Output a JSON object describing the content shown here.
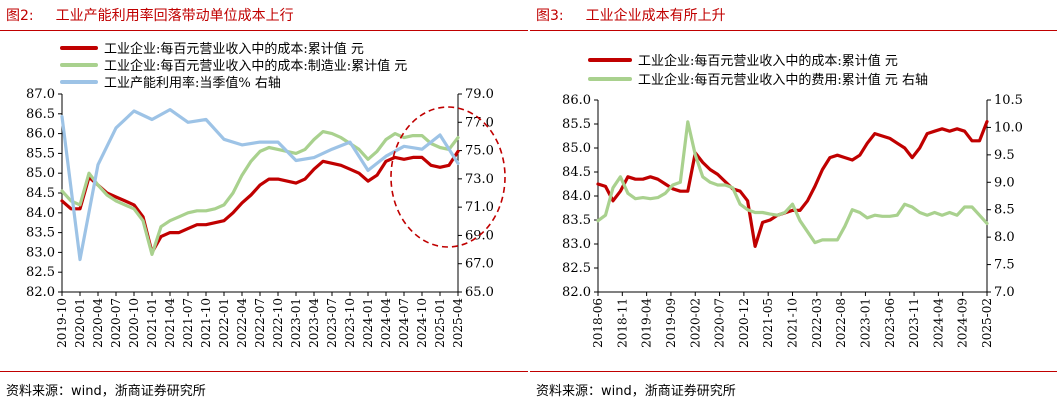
{
  "figures": [
    {
      "number": "图2:",
      "title": "工业产能利用率回落带动单位成本上行",
      "source": "资料来源：wind，浙商证券研究所"
    },
    {
      "number": "图3:",
      "title": "工业企业成本有所上升",
      "source": "资料来源：wind，浙商证券研究所"
    }
  ],
  "chart_data": [
    {
      "type": "line",
      "title": "工业产能利用率回落带动单位成本上行",
      "grid": false,
      "legend_position": "top-left",
      "annotation": "dashed red ellipse highlighting 2024-07 to 2025-04",
      "x_ticks": [
        "2019-10",
        "2020-01",
        "2020-04",
        "2020-07",
        "2020-10",
        "2021-01",
        "2021-04",
        "2021-07",
        "2021-10",
        "2022-01",
        "2022-04",
        "2022-07",
        "2022-10",
        "2023-01",
        "2023-04",
        "2023-07",
        "2023-10",
        "2024-01",
        "2024-04",
        "2024-07",
        "2024-10",
        "2025-01",
        "2025-04"
      ],
      "y_left": {
        "range": [
          82.0,
          87.0
        ],
        "ticks": [
          "82.0",
          "82.5",
          "83.0",
          "83.5",
          "84.0",
          "84.5",
          "85.0",
          "85.5",
          "86.0",
          "86.5",
          "87.0"
        ]
      },
      "y_right": {
        "range": [
          65.0,
          79.0
        ],
        "ticks": [
          "65.0",
          "67.0",
          "69.0",
          "71.0",
          "73.0",
          "75.0",
          "77.0",
          "79.0"
        ]
      },
      "series": [
        {
          "name": "工业企业:每百元营业收入中的成本:累计值 元",
          "color": "#c00000",
          "axis": "left",
          "points": [
            [
              0,
              84.3
            ],
            [
              1,
              84.1
            ],
            [
              2,
              84.1
            ],
            [
              3,
              84.9
            ],
            [
              4,
              84.7
            ],
            [
              5,
              84.5
            ],
            [
              6,
              84.4
            ],
            [
              7,
              84.3
            ],
            [
              8,
              84.2
            ],
            [
              9,
              83.9
            ],
            [
              10,
              83.0
            ],
            [
              11,
              83.4
            ],
            [
              12,
              83.5
            ],
            [
              13,
              83.5
            ],
            [
              14,
              83.6
            ],
            [
              15,
              83.7
            ],
            [
              16,
              83.7
            ],
            [
              17,
              83.75
            ],
            [
              18,
              83.8
            ],
            [
              19,
              84.0
            ],
            [
              20,
              84.25
            ],
            [
              21,
              84.45
            ],
            [
              22,
              84.7
            ],
            [
              23,
              84.85
            ],
            [
              24,
              84.85
            ],
            [
              25,
              84.8
            ],
            [
              26,
              84.75
            ],
            [
              27,
              84.85
            ],
            [
              28,
              85.1
            ],
            [
              29,
              85.3
            ],
            [
              30,
              85.25
            ],
            [
              31,
              85.2
            ],
            [
              32,
              85.1
            ],
            [
              33,
              85.0
            ],
            [
              34,
              84.8
            ],
            [
              35,
              84.95
            ],
            [
              36,
              85.3
            ],
            [
              37,
              85.4
            ],
            [
              38,
              85.35
            ],
            [
              39,
              85.4
            ],
            [
              40,
              85.4
            ],
            [
              41,
              85.2
            ],
            [
              42,
              85.15
            ],
            [
              43,
              85.2
            ],
            [
              44,
              85.55
            ]
          ]
        },
        {
          "name": "工业企业:每百元营业收入中的成本:制造业:累计值 元",
          "color": "#a9d18e",
          "axis": "left",
          "points": [
            [
              0,
              84.55
            ],
            [
              1,
              84.3
            ],
            [
              2,
              84.2
            ],
            [
              3,
              85.0
            ],
            [
              4,
              84.7
            ],
            [
              5,
              84.45
            ],
            [
              6,
              84.3
            ],
            [
              7,
              84.2
            ],
            [
              8,
              84.1
            ],
            [
              9,
              83.8
            ],
            [
              10,
              82.95
            ],
            [
              11,
              83.65
            ],
            [
              12,
              83.8
            ],
            [
              13,
              83.9
            ],
            [
              14,
              84.0
            ],
            [
              15,
              84.05
            ],
            [
              16,
              84.05
            ],
            [
              17,
              84.1
            ],
            [
              18,
              84.2
            ],
            [
              19,
              84.5
            ],
            [
              20,
              84.95
            ],
            [
              21,
              85.3
            ],
            [
              22,
              85.55
            ],
            [
              23,
              85.65
            ],
            [
              24,
              85.6
            ],
            [
              25,
              85.55
            ],
            [
              26,
              85.5
            ],
            [
              27,
              85.6
            ],
            [
              28,
              85.85
            ],
            [
              29,
              86.05
            ],
            [
              30,
              86.0
            ],
            [
              31,
              85.9
            ],
            [
              32,
              85.75
            ],
            [
              33,
              85.6
            ],
            [
              34,
              85.35
            ],
            [
              35,
              85.55
            ],
            [
              36,
              85.85
            ],
            [
              37,
              86.0
            ],
            [
              38,
              85.9
            ],
            [
              39,
              85.95
            ],
            [
              40,
              85.95
            ],
            [
              41,
              85.75
            ],
            [
              42,
              85.65
            ],
            [
              43,
              85.6
            ],
            [
              44,
              85.9
            ]
          ]
        },
        {
          "name": "工业产能利用率:当季值% 右轴",
          "color": "#9dc3e6",
          "axis": "right",
          "points": [
            [
              0,
              77.4
            ],
            [
              2,
              67.3
            ],
            [
              4,
              74.0
            ],
            [
              6,
              76.6
            ],
            [
              8,
              77.8
            ],
            [
              10,
              77.2
            ],
            [
              12,
              77.9
            ],
            [
              14,
              77.0
            ],
            [
              16,
              77.2
            ],
            [
              18,
              75.8
            ],
            [
              20,
              75.4
            ],
            [
              22,
              75.6
            ],
            [
              24,
              75.6
            ],
            [
              26,
              74.3
            ],
            [
              28,
              74.5
            ],
            [
              30,
              75.1
            ],
            [
              32,
              75.6
            ],
            [
              34,
              73.6
            ],
            [
              36,
              74.6
            ],
            [
              38,
              75.3
            ],
            [
              40,
              75.1
            ],
            [
              42,
              76.1
            ],
            [
              44,
              74.1
            ]
          ]
        }
      ]
    },
    {
      "type": "line",
      "title": "工业企业成本有所上升",
      "grid": false,
      "legend_position": "top",
      "x_ticks": [
        "2018-06",
        "2018-11",
        "2019-04",
        "2019-09",
        "2020-02",
        "2020-07",
        "2020-12",
        "2021-05",
        "2021-10",
        "2022-03",
        "2022-08",
        "2023-01",
        "2023-06",
        "2023-11",
        "2024-04",
        "2024-09",
        "2025-02"
      ],
      "y_left": {
        "range": [
          82.0,
          86.0
        ],
        "ticks": [
          "82.0",
          "82.5",
          "83.0",
          "83.5",
          "84.0",
          "84.5",
          "85.0",
          "85.5",
          "86.0"
        ]
      },
      "y_right": {
        "range": [
          7.0,
          10.5
        ],
        "ticks": [
          "7.0",
          "7.5",
          "8.0",
          "8.5",
          "9.0",
          "9.5",
          "10.0",
          "10.5"
        ]
      },
      "series": [
        {
          "name": "工业企业:每百元营业收入中的成本:累计值 元",
          "color": "#c00000",
          "axis": "left",
          "points": [
            [
              0,
              84.25
            ],
            [
              1,
              84.2
            ],
            [
              2,
              83.9
            ],
            [
              3,
              84.1
            ],
            [
              4,
              84.4
            ],
            [
              5,
              84.35
            ],
            [
              6,
              84.35
            ],
            [
              7,
              84.4
            ],
            [
              8,
              84.35
            ],
            [
              9,
              84.25
            ],
            [
              10,
              84.15
            ],
            [
              11,
              84.1
            ],
            [
              12,
              84.1
            ],
            [
              13,
              84.9
            ],
            [
              14,
              84.7
            ],
            [
              15,
              84.55
            ],
            [
              16,
              84.45
            ],
            [
              17,
              84.3
            ],
            [
              18,
              84.15
            ],
            [
              19,
              84.1
            ],
            [
              20,
              83.9
            ],
            [
              21,
              82.95
            ],
            [
              22,
              83.45
            ],
            [
              23,
              83.5
            ],
            [
              24,
              83.6
            ],
            [
              25,
              83.65
            ],
            [
              26,
              83.7
            ],
            [
              27,
              83.7
            ],
            [
              28,
              83.9
            ],
            [
              29,
              84.2
            ],
            [
              30,
              84.55
            ],
            [
              31,
              84.8
            ],
            [
              32,
              84.85
            ],
            [
              33,
              84.8
            ],
            [
              34,
              84.75
            ],
            [
              35,
              84.85
            ],
            [
              36,
              85.1
            ],
            [
              37,
              85.3
            ],
            [
              38,
              85.25
            ],
            [
              39,
              85.2
            ],
            [
              40,
              85.1
            ],
            [
              41,
              85.0
            ],
            [
              42,
              84.8
            ],
            [
              43,
              85.0
            ],
            [
              44,
              85.3
            ],
            [
              45,
              85.35
            ],
            [
              46,
              85.4
            ],
            [
              47,
              85.35
            ],
            [
              48,
              85.4
            ],
            [
              49,
              85.35
            ],
            [
              50,
              85.15
            ],
            [
              51,
              85.15
            ],
            [
              52,
              85.55
            ]
          ]
        },
        {
          "name": "工业企业:每百元营业收入中的费用:累计值 元 右轴",
          "color": "#a9d18e",
          "axis": "right",
          "points": [
            [
              0,
              8.3
            ],
            [
              1,
              8.4
            ],
            [
              2,
              8.9
            ],
            [
              3,
              9.1
            ],
            [
              4,
              8.8
            ],
            [
              5,
              8.7
            ],
            [
              6,
              8.72
            ],
            [
              7,
              8.7
            ],
            [
              8,
              8.72
            ],
            [
              9,
              8.8
            ],
            [
              10,
              8.95
            ],
            [
              11,
              9.0
            ],
            [
              12,
              10.1
            ],
            [
              13,
              9.5
            ],
            [
              14,
              9.1
            ],
            [
              15,
              9.0
            ],
            [
              16,
              8.95
            ],
            [
              17,
              8.95
            ],
            [
              18,
              8.9
            ],
            [
              19,
              8.6
            ],
            [
              20,
              8.5
            ],
            [
              21,
              8.45
            ],
            [
              22,
              8.45
            ],
            [
              23,
              8.42
            ],
            [
              24,
              8.4
            ],
            [
              25,
              8.45
            ],
            [
              26,
              8.6
            ],
            [
              27,
              8.3
            ],
            [
              28,
              8.1
            ],
            [
              29,
              7.9
            ],
            [
              30,
              7.95
            ],
            [
              31,
              7.95
            ],
            [
              32,
              7.95
            ],
            [
              33,
              8.2
            ],
            [
              34,
              8.5
            ],
            [
              35,
              8.45
            ],
            [
              36,
              8.35
            ],
            [
              37,
              8.4
            ],
            [
              38,
              8.38
            ],
            [
              39,
              8.38
            ],
            [
              40,
              8.4
            ],
            [
              41,
              8.6
            ],
            [
              42,
              8.55
            ],
            [
              43,
              8.45
            ],
            [
              44,
              8.4
            ],
            [
              45,
              8.45
            ],
            [
              46,
              8.4
            ],
            [
              47,
              8.45
            ],
            [
              48,
              8.4
            ],
            [
              49,
              8.55
            ],
            [
              50,
              8.55
            ],
            [
              51,
              8.4
            ],
            [
              52,
              8.25
            ]
          ]
        }
      ]
    }
  ]
}
